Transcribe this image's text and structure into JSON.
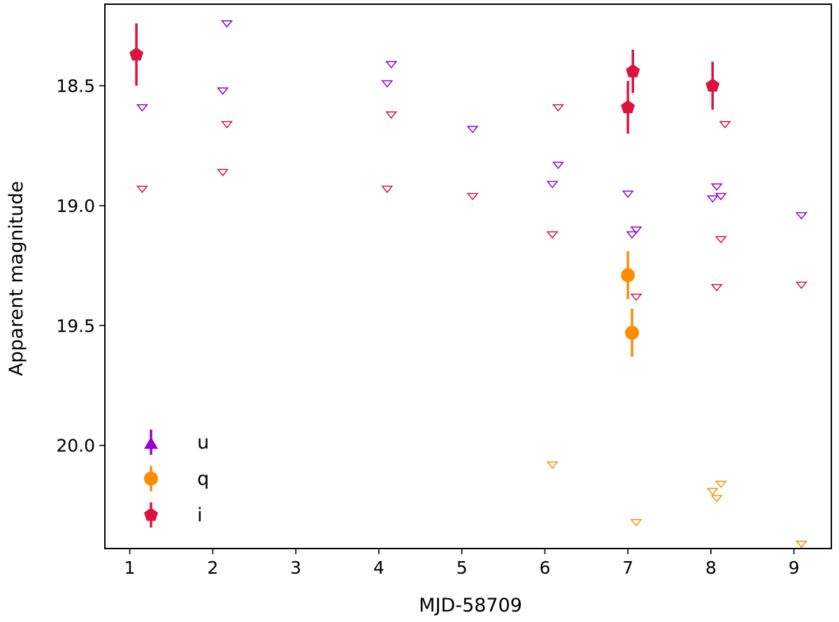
{
  "chart_data": {
    "type": "scatter",
    "title": "",
    "xlabel": "MJD-58709",
    "ylabel": "Apparent magnitude",
    "xlim": [
      0.7,
      9.45
    ],
    "ylim": [
      20.43,
      18.16
    ],
    "y_inverted": true,
    "xticks": [
      1,
      2,
      3,
      4,
      5,
      6,
      7,
      8,
      9
    ],
    "xtick_labels": [
      "1",
      "2",
      "3",
      "4",
      "5",
      "6",
      "7",
      "8",
      "9"
    ],
    "yticks": [
      18.5,
      19.0,
      19.5,
      20.0
    ],
    "ytick_labels": [
      "18.5",
      "19.0",
      "19.5",
      "20.0"
    ],
    "grid": false,
    "legend_position": "lower-left",
    "colors": {
      "u": "#9400d3",
      "q": "#ff8c00",
      "i": "#dc143c"
    },
    "legend": [
      {
        "name": "u",
        "marker": "triangle-up",
        "color": "#9400d3"
      },
      {
        "name": "q",
        "marker": "circle",
        "color": "#ff8c00"
      },
      {
        "name": "i",
        "marker": "pentagon",
        "color": "#dc143c"
      }
    ],
    "detections": [
      {
        "series": "q",
        "points": [
          {
            "x": 7.0,
            "y": 19.29,
            "err": 0.1
          },
          {
            "x": 7.05,
            "y": 19.53,
            "err": 0.1
          }
        ]
      },
      {
        "series": "i",
        "points": [
          {
            "x": 1.08,
            "y": 18.37,
            "err": 0.13
          },
          {
            "x": 7.0,
            "y": 18.59,
            "err": 0.11
          },
          {
            "x": 7.06,
            "y": 18.44,
            "err": 0.09
          },
          {
            "x": 8.02,
            "y": 18.5,
            "err": 0.1
          }
        ]
      }
    ],
    "upper_limits": [
      {
        "series": "u",
        "points": [
          {
            "x": 1.15,
            "y": 18.59
          },
          {
            "x": 2.12,
            "y": 18.52
          },
          {
            "x": 2.17,
            "y": 18.24
          },
          {
            "x": 4.1,
            "y": 18.49
          },
          {
            "x": 4.15,
            "y": 18.41
          },
          {
            "x": 5.13,
            "y": 18.68
          },
          {
            "x": 6.09,
            "y": 18.91
          },
          {
            "x": 6.16,
            "y": 18.83
          },
          {
            "x": 7.0,
            "y": 18.95
          },
          {
            "x": 7.05,
            "y": 19.12
          },
          {
            "x": 7.1,
            "y": 19.1
          },
          {
            "x": 8.02,
            "y": 18.97
          },
          {
            "x": 8.07,
            "y": 18.92
          },
          {
            "x": 8.12,
            "y": 18.96
          },
          {
            "x": 9.09,
            "y": 19.04
          }
        ]
      },
      {
        "series": "q",
        "points": [
          {
            "x": 6.09,
            "y": 20.08
          },
          {
            "x": 7.1,
            "y": 20.32
          },
          {
            "x": 8.02,
            "y": 20.19
          },
          {
            "x": 8.07,
            "y": 20.22
          },
          {
            "x": 8.12,
            "y": 20.16
          },
          {
            "x": 9.09,
            "y": 20.41
          }
        ]
      },
      {
        "series": "i",
        "points": [
          {
            "x": 1.15,
            "y": 18.93
          },
          {
            "x": 2.12,
            "y": 18.86
          },
          {
            "x": 2.17,
            "y": 18.66
          },
          {
            "x": 4.1,
            "y": 18.93
          },
          {
            "x": 4.15,
            "y": 18.62
          },
          {
            "x": 5.13,
            "y": 18.96
          },
          {
            "x": 6.09,
            "y": 19.12
          },
          {
            "x": 6.16,
            "y": 18.59
          },
          {
            "x": 7.1,
            "y": 19.38
          },
          {
            "x": 8.07,
            "y": 19.34
          },
          {
            "x": 8.12,
            "y": 19.14
          },
          {
            "x": 8.17,
            "y": 18.66
          },
          {
            "x": 9.09,
            "y": 19.33
          }
        ]
      }
    ]
  }
}
